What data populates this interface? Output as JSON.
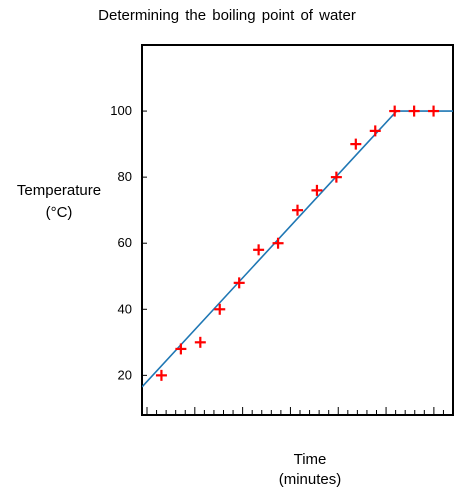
{
  "chart_data": {
    "type": "scatter",
    "title": "Determining the boiling point of water",
    "ylabel_line1": "Temperature",
    "ylabel_line2": "(°C)",
    "xlabel_line1": "Time",
    "xlabel_line2": "(minutes)",
    "ylim": [
      8,
      120
    ],
    "y_ticks": [
      20,
      40,
      60,
      80,
      100
    ],
    "x_labeled_ticks": false,
    "grid": false,
    "marker": "+",
    "marker_color": "#ff0000",
    "line_color": "#1f77b4",
    "points": [
      {
        "x": 1,
        "y": 20
      },
      {
        "x": 2,
        "y": 28
      },
      {
        "x": 3,
        "y": 30
      },
      {
        "x": 4,
        "y": 40
      },
      {
        "x": 5,
        "y": 48
      },
      {
        "x": 6,
        "y": 58
      },
      {
        "x": 7,
        "y": 60
      },
      {
        "x": 8,
        "y": 70
      },
      {
        "x": 9,
        "y": 76
      },
      {
        "x": 10,
        "y": 80
      },
      {
        "x": 11,
        "y": 90
      },
      {
        "x": 12,
        "y": 94
      },
      {
        "x": 13,
        "y": 100
      },
      {
        "x": 14,
        "y": 100
      },
      {
        "x": 15,
        "y": 100
      }
    ],
    "xlim": [
      0,
      16
    ],
    "trend_line": [
      {
        "x": 0,
        "y": 16.5
      },
      {
        "x": 13.1,
        "y": 100
      },
      {
        "x": 16,
        "y": 100
      }
    ]
  }
}
